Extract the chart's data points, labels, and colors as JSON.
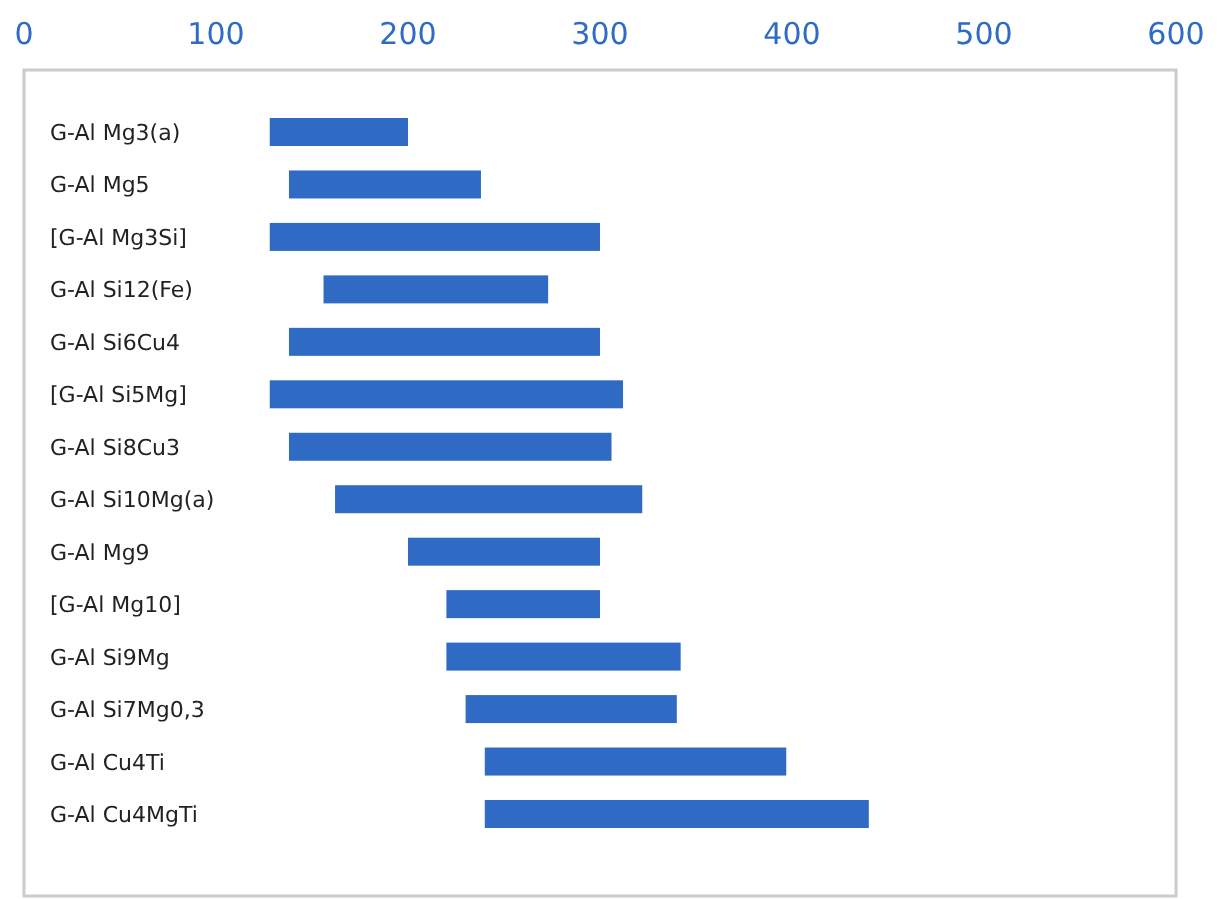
{
  "chart_data": {
    "type": "bar",
    "orientation": "horizontal",
    "categories": [
      "G-Al Mg3(a)",
      "G-Al Mg5",
      "[G-Al Mg3Si]",
      "G-Al Si12(Fe)",
      "G-Al Si6Cu4",
      "[G-Al Si5Mg]",
      "G-Al Si8Cu3",
      "G-Al Si10Mg(a)",
      "G-Al Mg9",
      "[G-Al Mg10]",
      "G-Al Si9Mg",
      "G-Al Si7Mg0,3",
      "G-Al Cu4Ti",
      "G-Al Cu4MgTi"
    ],
    "base": [
      128,
      138,
      128,
      156,
      138,
      128,
      138,
      162,
      200,
      220,
      220,
      230,
      240,
      240
    ],
    "values": [
      72,
      100,
      172,
      117,
      162,
      184,
      168,
      160,
      100,
      80,
      122,
      110,
      157,
      200
    ],
    "color": "#2f6bc4",
    "xlim": [
      0,
      600
    ],
    "xticks": [
      0,
      100,
      200,
      300,
      400,
      500,
      600
    ],
    "grid": false
  }
}
